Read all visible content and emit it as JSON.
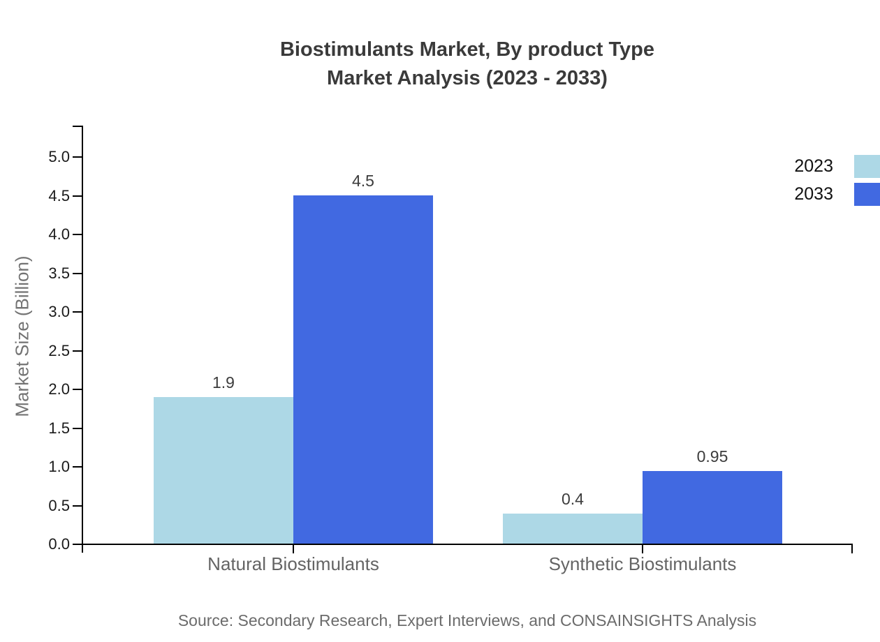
{
  "chart_data": {
    "type": "bar",
    "title_lines": [
      "Biostimulants Market, By product Type",
      "Market Analysis (2023 - 2033)"
    ],
    "categories": [
      "Natural Biostimulants",
      "Synthetic Biostimulants"
    ],
    "series": [
      {
        "name": "2023",
        "color": "#ADD8E6",
        "values": [
          1.9,
          0.4
        ],
        "value_labels": [
          "1.9",
          "0.4"
        ]
      },
      {
        "name": "2033",
        "color": "#4169E1",
        "values": [
          4.5,
          0.95
        ],
        "value_labels": [
          "4.5",
          "0.95"
        ]
      }
    ],
    "xlabel": "",
    "ylabel": "Market Size (Billion)",
    "ylim": [
      0,
      5
    ],
    "ytick_step": 0.5,
    "ytick_labels": [
      "0.0",
      "0.5",
      "1.0",
      "1.5",
      "2.0",
      "2.5",
      "3.0",
      "3.5",
      "4.0",
      "4.5",
      "5.0"
    ],
    "grid": false,
    "legend_position": "upper right",
    "source": "Source: Secondary Research, Expert Interviews, and CONSAINSIGHTS Analysis"
  },
  "colors": {
    "series_2023": "#ADD8E6",
    "series_2033": "#4169E1",
    "axis": "#000000",
    "title_text": "#3A3A3A",
    "muted_text": "#6B6B6B"
  }
}
